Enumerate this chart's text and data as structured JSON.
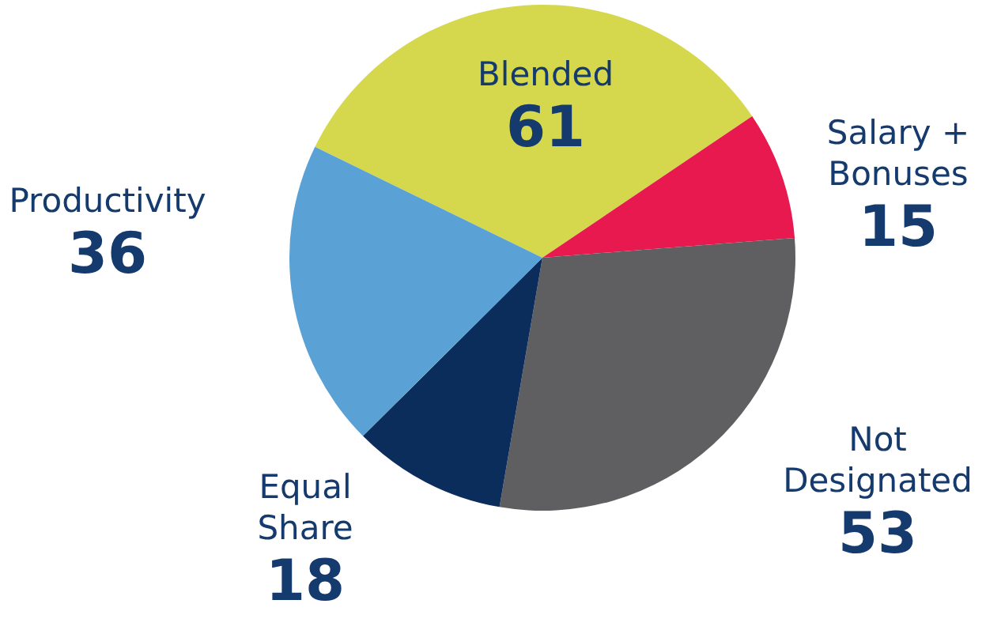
{
  "chart_data": {
    "type": "pie",
    "categories": [
      "Blended",
      "Salary + Bonuses",
      "Not Designated",
      "Equal Share",
      "Productivity"
    ],
    "values": [
      61,
      15,
      53,
      18,
      36
    ],
    "colors": [
      "#d5d84c",
      "#e8194f",
      "#5f5f61",
      "#0b2d5c",
      "#5aa2d6"
    ],
    "data_labels": true,
    "legend": false
  }
}
